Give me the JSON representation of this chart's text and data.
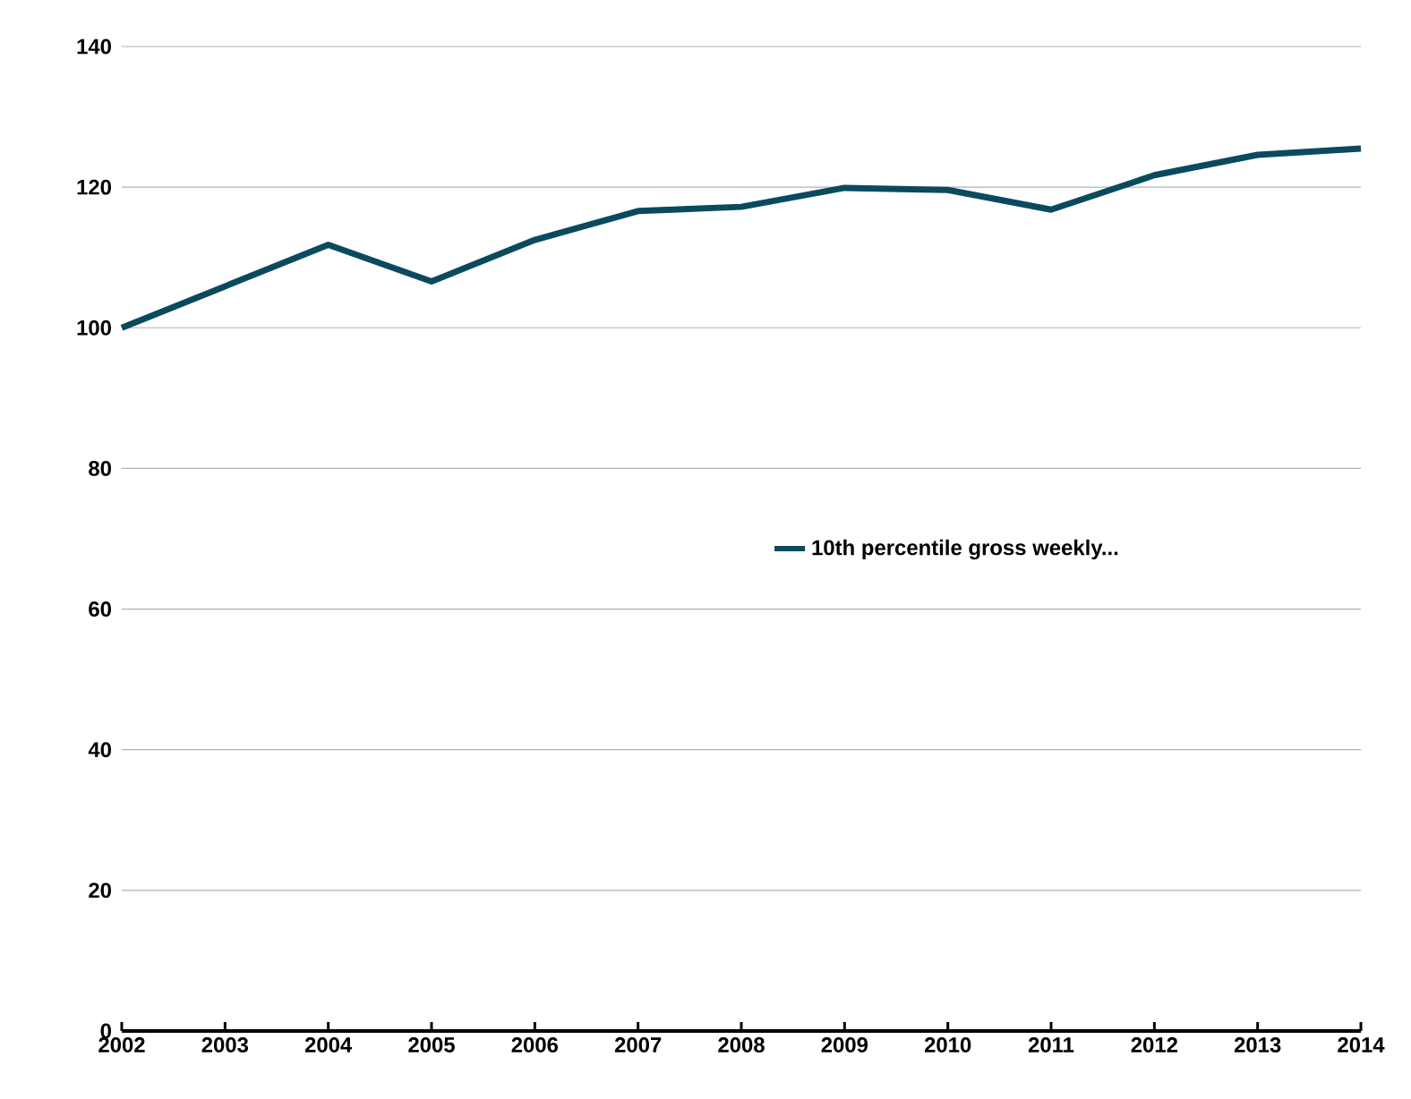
{
  "chart_data": {
    "type": "line",
    "categories": [
      "2002",
      "2003",
      "2004",
      "2005",
      "2006",
      "2007",
      "2008",
      "2009",
      "2010",
      "2011",
      "2012",
      "2013",
      "2014"
    ],
    "series": [
      {
        "name": "10th percentile gross weekly...",
        "color": "#0b4a5e",
        "values": [
          100,
          105.9,
          111.8,
          106.6,
          112.5,
          116.6,
          117.2,
          119.9,
          119.6,
          116.8,
          121.7,
          124.6,
          125.5
        ]
      }
    ],
    "ylim": [
      0,
      140
    ],
    "yticks": [
      0,
      20,
      40,
      60,
      80,
      100,
      120,
      140
    ],
    "grid": "y",
    "legend": "right",
    "marker": "none",
    "line_style": "solid"
  }
}
